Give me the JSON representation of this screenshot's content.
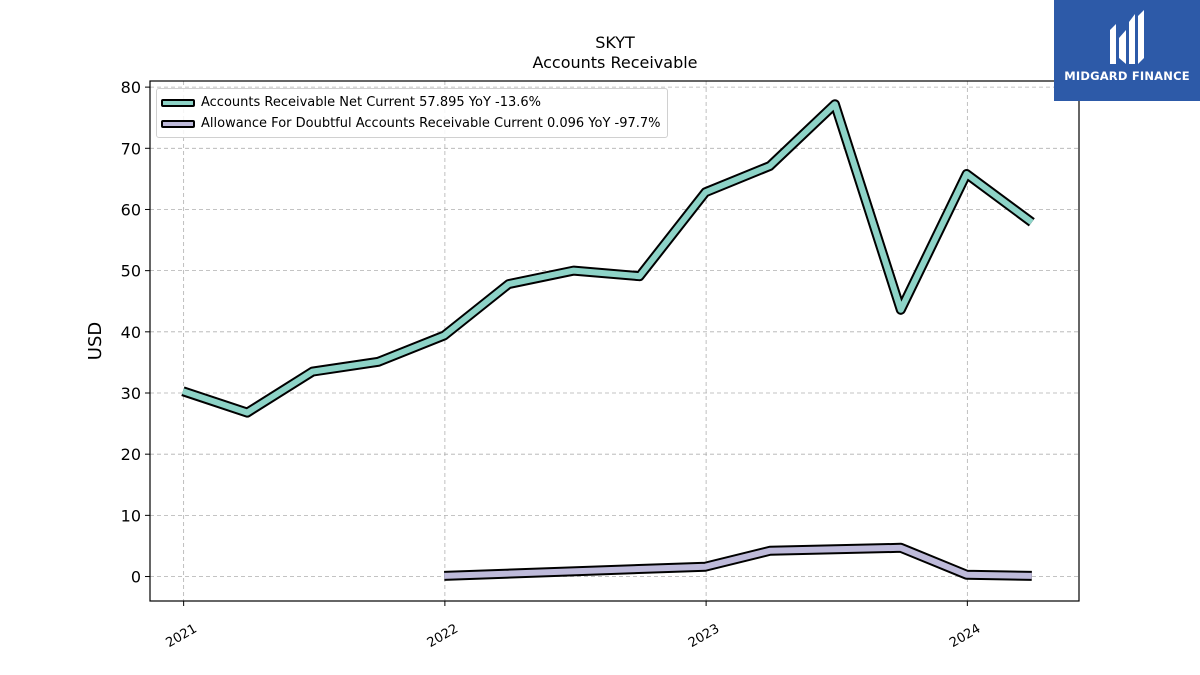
{
  "chart_data": {
    "type": "line",
    "title": "SKYT",
    "subtitle": "Accounts Receivable",
    "ylabel": "USD",
    "xlabel": "",
    "ylim": [
      -4,
      81
    ],
    "xlim": [
      "2020-11-15",
      "2024-06-05"
    ],
    "yticks": [
      0,
      10,
      20,
      30,
      40,
      50,
      60,
      70,
      80
    ],
    "xticks": [
      {
        "label": "2021",
        "date": "2021-01-01"
      },
      {
        "label": "2022",
        "date": "2022-01-01"
      },
      {
        "label": "2023",
        "date": "2023-01-01"
      },
      {
        "label": "2024",
        "date": "2024-01-01"
      }
    ],
    "grid": true,
    "legend_position": "top-left",
    "series": [
      {
        "name": "Accounts Receivable Net Current  57.895 YoY -13.6%",
        "color": "#8dd3c7",
        "points": [
          {
            "date": "2020-12-31",
            "value": 30.3
          },
          {
            "date": "2021-03-31",
            "value": 26.8
          },
          {
            "date": "2021-06-30",
            "value": 33.5
          },
          {
            "date": "2021-09-30",
            "value": 35.1
          },
          {
            "date": "2021-12-31",
            "value": 39.4
          },
          {
            "date": "2022-03-31",
            "value": 47.8
          },
          {
            "date": "2022-06-30",
            "value": 50.0
          },
          {
            "date": "2022-09-30",
            "value": 49.1
          },
          {
            "date": "2022-12-31",
            "value": 62.8
          },
          {
            "date": "2023-03-31",
            "value": 67.1
          },
          {
            "date": "2023-06-30",
            "value": 77.2
          },
          {
            "date": "2023-09-30",
            "value": 43.6
          },
          {
            "date": "2023-12-31",
            "value": 65.8
          },
          {
            "date": "2024-03-31",
            "value": 57.9
          }
        ]
      },
      {
        "name": "Allowance For Doubtful Accounts Receivable Current  0.096 YoY -97.7%",
        "color": "#bebada",
        "points": [
          {
            "date": "2021-12-31",
            "value": 0.1
          },
          {
            "date": "2022-12-31",
            "value": 1.6
          },
          {
            "date": "2023-03-31",
            "value": 4.2
          },
          {
            "date": "2023-09-30",
            "value": 4.7
          },
          {
            "date": "2023-12-31",
            "value": 0.3
          },
          {
            "date": "2024-03-31",
            "value": 0.1
          }
        ]
      }
    ]
  },
  "brand": {
    "name": "MIDGARD FINANCE",
    "color": "#2d5aa8"
  }
}
